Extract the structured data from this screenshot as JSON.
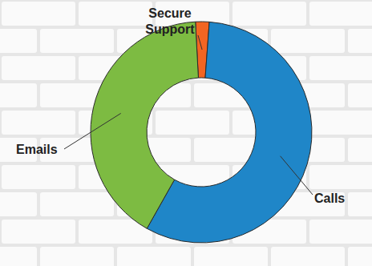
{
  "chart_data": {
    "type": "donut",
    "categories": [
      "Secure Support",
      "Calls",
      "Emails"
    ],
    "values": [
      2,
      57,
      41
    ],
    "colors": [
      "#f26522",
      "#1f86c8",
      "#7dbb42"
    ]
  }
}
